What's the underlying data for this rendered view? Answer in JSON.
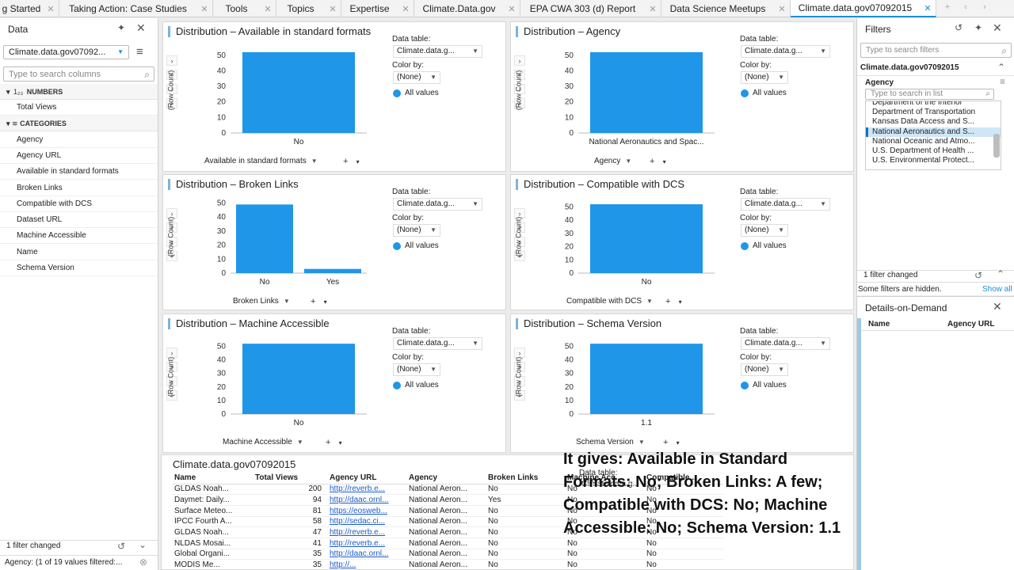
{
  "tabs": [
    {
      "label": "g Started"
    },
    {
      "label": "Taking Action: Case Studies"
    },
    {
      "label": "Tools"
    },
    {
      "label": "Topics"
    },
    {
      "label": "Expertise"
    },
    {
      "label": "Climate.Data.gov"
    },
    {
      "label": "EPA CWA 303 (d) Report"
    },
    {
      "label": "Data Science Meetups"
    },
    {
      "label": "Climate.data.gov07092015",
      "active": true
    }
  ],
  "tab_controls": {
    "new": "+",
    "prev": "‹",
    "next": "›"
  },
  "data_panel": {
    "title": "Data",
    "pin_glyph": "✦",
    "close_glyph": "✕",
    "menu_glyph": "≡",
    "source": "Climate.data.gov07092...",
    "search_placeholder": "Type to search columns",
    "numbers_label": "NUMBERS",
    "numbers_icon": "1₂₃",
    "numbers": [
      "Total Views"
    ],
    "categories_label": "CATEGORIES",
    "categories": [
      "Agency",
      "Agency URL",
      "Available in standard formats",
      "Broken Links",
      "Compatible with DCS",
      "Dataset URL",
      "Machine Accessible",
      "Name",
      "Schema Version"
    ],
    "footer_status": "1 filter changed",
    "footer_filter": "Agency: (1 of 19 values filtered:..."
  },
  "charts": [
    {
      "title": "Distribution – Available in standard formats",
      "category_axis": "Available in standard formats",
      "ylabel": "(Row Count)",
      "data_table": "Climate.data.g...",
      "color_by": "(None)",
      "legend": "All values",
      "chart_data": {
        "type": "bar",
        "categories": [
          "No"
        ],
        "values": [
          52
        ],
        "ylim": [
          0,
          55
        ],
        "yticks": [
          0,
          10,
          20,
          30,
          40,
          50
        ]
      }
    },
    {
      "title": "Distribution – Agency",
      "category_axis": "Agency",
      "ylabel": "(Row Count)",
      "data_table": "Climate.data.g...",
      "color_by": "(None)",
      "legend": "All values",
      "chart_data": {
        "type": "bar",
        "categories": [
          "National Aeronautics and Spac..."
        ],
        "values": [
          52
        ],
        "ylim": [
          0,
          55
        ],
        "yticks": [
          0,
          10,
          20,
          30,
          40,
          50
        ]
      }
    },
    {
      "title": "Distribution – Broken Links",
      "category_axis": "Broken Links",
      "ylabel": "(Row Count)",
      "data_table": "Climate.data.g...",
      "color_by": "(None)",
      "legend": "All values",
      "chart_data": {
        "type": "bar",
        "categories": [
          "No",
          "Yes"
        ],
        "values": [
          49,
          3
        ],
        "ylim": [
          0,
          52
        ],
        "yticks": [
          0,
          10,
          20,
          30,
          40,
          50
        ]
      }
    },
    {
      "title": "Distribution – Compatible with DCS",
      "category_axis": "Compatible with DCS",
      "ylabel": "(Row Count)",
      "data_table": "Climate.data.g...",
      "color_by": "(None)",
      "legend": "All values",
      "chart_data": {
        "type": "bar",
        "categories": [
          "No"
        ],
        "values": [
          52
        ],
        "ylim": [
          0,
          55
        ],
        "yticks": [
          0,
          10,
          20,
          30,
          40,
          50
        ]
      }
    },
    {
      "title": "Distribution – Machine Accessible",
      "category_axis": "Machine Accessible",
      "ylabel": "(Row Count)",
      "data_table": "Climate.data.g...",
      "color_by": "(None)",
      "legend": "All values",
      "chart_data": {
        "type": "bar",
        "categories": [
          "No"
        ],
        "values": [
          52
        ],
        "ylim": [
          0,
          55
        ],
        "yticks": [
          0,
          10,
          20,
          30,
          40,
          50
        ]
      }
    },
    {
      "title": "Distribution – Schema Version",
      "category_axis": "Schema Version",
      "ylabel": "(Row Count)",
      "data_table": "Climate.data.g...",
      "color_by": "(None)",
      "legend": "All values",
      "chart_data": {
        "type": "bar",
        "categories": [
          "1.1"
        ],
        "values": [
          52
        ],
        "ylim": [
          0,
          55
        ],
        "yticks": [
          0,
          10,
          20,
          30,
          40,
          50
        ]
      }
    }
  ],
  "chart_props": {
    "data_table_label": "Data table:",
    "color_by_label": "Color by:",
    "plus": "+",
    "side_btns": [
      "›",
      "+",
      "›",
      "+"
    ]
  },
  "table": {
    "title": "Climate.data.gov07092015",
    "columns": [
      "Name",
      "Total Views",
      "Agency URL",
      "Agency",
      "Broken Links",
      "Machine Acc...",
      "Compatible..."
    ],
    "rows": [
      [
        "GLDAS Noah...",
        "200",
        "http://reverb.e...",
        "National Aeron...",
        "No",
        "No",
        "No"
      ],
      [
        "Daymet: Daily...",
        "94",
        "http://daac.ornl...",
        "National Aeron...",
        "Yes",
        "No",
        "No"
      ],
      [
        "Surface Meteo...",
        "81",
        "https://eosweb...",
        "National Aeron...",
        "No",
        "No",
        "No"
      ],
      [
        "IPCC Fourth A...",
        "58",
        "http://sedac.ci...",
        "National Aeron...",
        "No",
        "No",
        "No"
      ],
      [
        "GLDAS Noah...",
        "47",
        "http://reverb.e...",
        "National Aeron...",
        "No",
        "No",
        "No"
      ],
      [
        "NLDAS Mosai...",
        "41",
        "http://reverb.e...",
        "National Aeron...",
        "No",
        "No",
        "No"
      ],
      [
        "Global Organi...",
        "35",
        "http://daac.ornl...",
        "National Aeron...",
        "No",
        "No",
        "No"
      ],
      [
        "MODIS Me...",
        "35",
        "http://...",
        "National Aeron...",
        "No",
        "No",
        "No"
      ]
    ],
    "hidden_props": {
      "data_table_label": "Data table:",
      "data_table": "Climate.data.g..."
    }
  },
  "filters_panel": {
    "title": "Filters",
    "search_placeholder": "Type to search filters",
    "source": "Climate.data.gov07092015",
    "agency_label": "Agency",
    "list_search_placeholder": "Type to search in list",
    "items": [
      {
        "label": "Department of the Interior"
      },
      {
        "label": "Department of Transportation"
      },
      {
        "label": "Kansas Data Access and S..."
      },
      {
        "label": "National Aeronautics and S...",
        "selected": true
      },
      {
        "label": "National Oceanic and Atmo..."
      },
      {
        "label": "U.S. Department of Health ..."
      },
      {
        "label": "U.S. Environmental Protect..."
      }
    ],
    "status": "1 filter changed",
    "hidden_note": "Some filters are hidden.",
    "show_all": "Show all"
  },
  "dod_panel": {
    "title": "Details-on-Demand",
    "columns": [
      "Name",
      "Agency URL"
    ]
  },
  "overlay_text": "It gives: Available in Standard Formats: No; Broken Links: A few; Compatible with DCS: No; Machine Accessible: No; Schema Version: 1.1",
  "colors": {
    "bar": "#1f96e8",
    "accent": "#1a8fd8",
    "link": "#1a5cc8"
  }
}
